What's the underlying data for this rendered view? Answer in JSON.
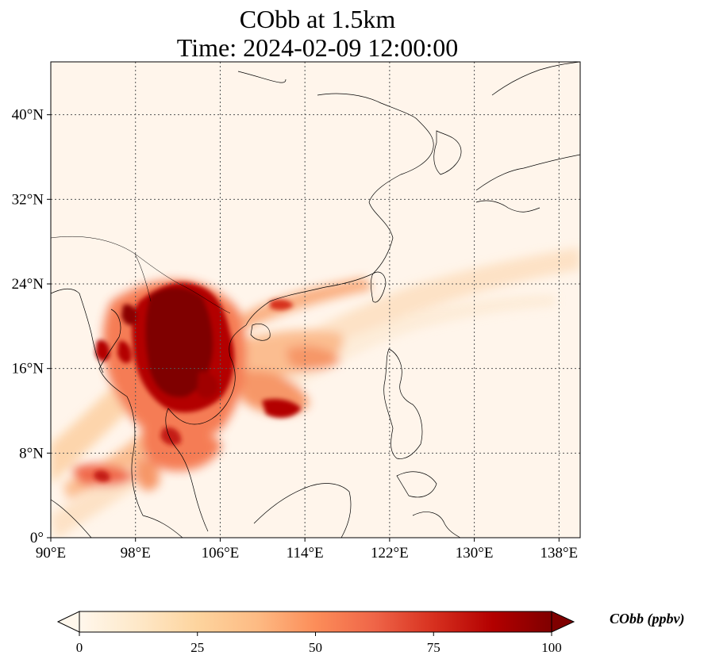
{
  "title_line1": "CObb at 1.5km",
  "title_line2": "Time: 2024-02-09 12:00:00",
  "map": {
    "lon_range": [
      90,
      140
    ],
    "lat_range": [
      0,
      45
    ],
    "lon_ticks": [
      {
        "value": 90,
        "label": "90°E"
      },
      {
        "value": 98,
        "label": "98°E"
      },
      {
        "value": 106,
        "label": "106°E"
      },
      {
        "value": 114,
        "label": "114°E"
      },
      {
        "value": 122,
        "label": "122°E"
      },
      {
        "value": 130,
        "label": "130°E"
      },
      {
        "value": 138,
        "label": "138°E"
      }
    ],
    "lat_ticks": [
      {
        "value": 0,
        "label": "0°"
      },
      {
        "value": 8,
        "label": "8°N"
      },
      {
        "value": 16,
        "label": "16°N"
      },
      {
        "value": 24,
        "label": "24°N"
      },
      {
        "value": 32,
        "label": "32°N"
      },
      {
        "value": 40,
        "label": "40°N"
      }
    ],
    "gridlines": true,
    "plume_color_max": "#7f0000",
    "background_color": "#fff5eb"
  },
  "colorbar": {
    "label": "CObb (ppbv)",
    "min": 0,
    "max": 100,
    "ticks": [
      {
        "value": 0,
        "label": "0"
      },
      {
        "value": 25,
        "label": "25"
      },
      {
        "value": 50,
        "label": "50"
      },
      {
        "value": 75,
        "label": "75"
      },
      {
        "value": 100,
        "label": "100"
      }
    ],
    "colormap": "OrRd",
    "extend": "both"
  }
}
